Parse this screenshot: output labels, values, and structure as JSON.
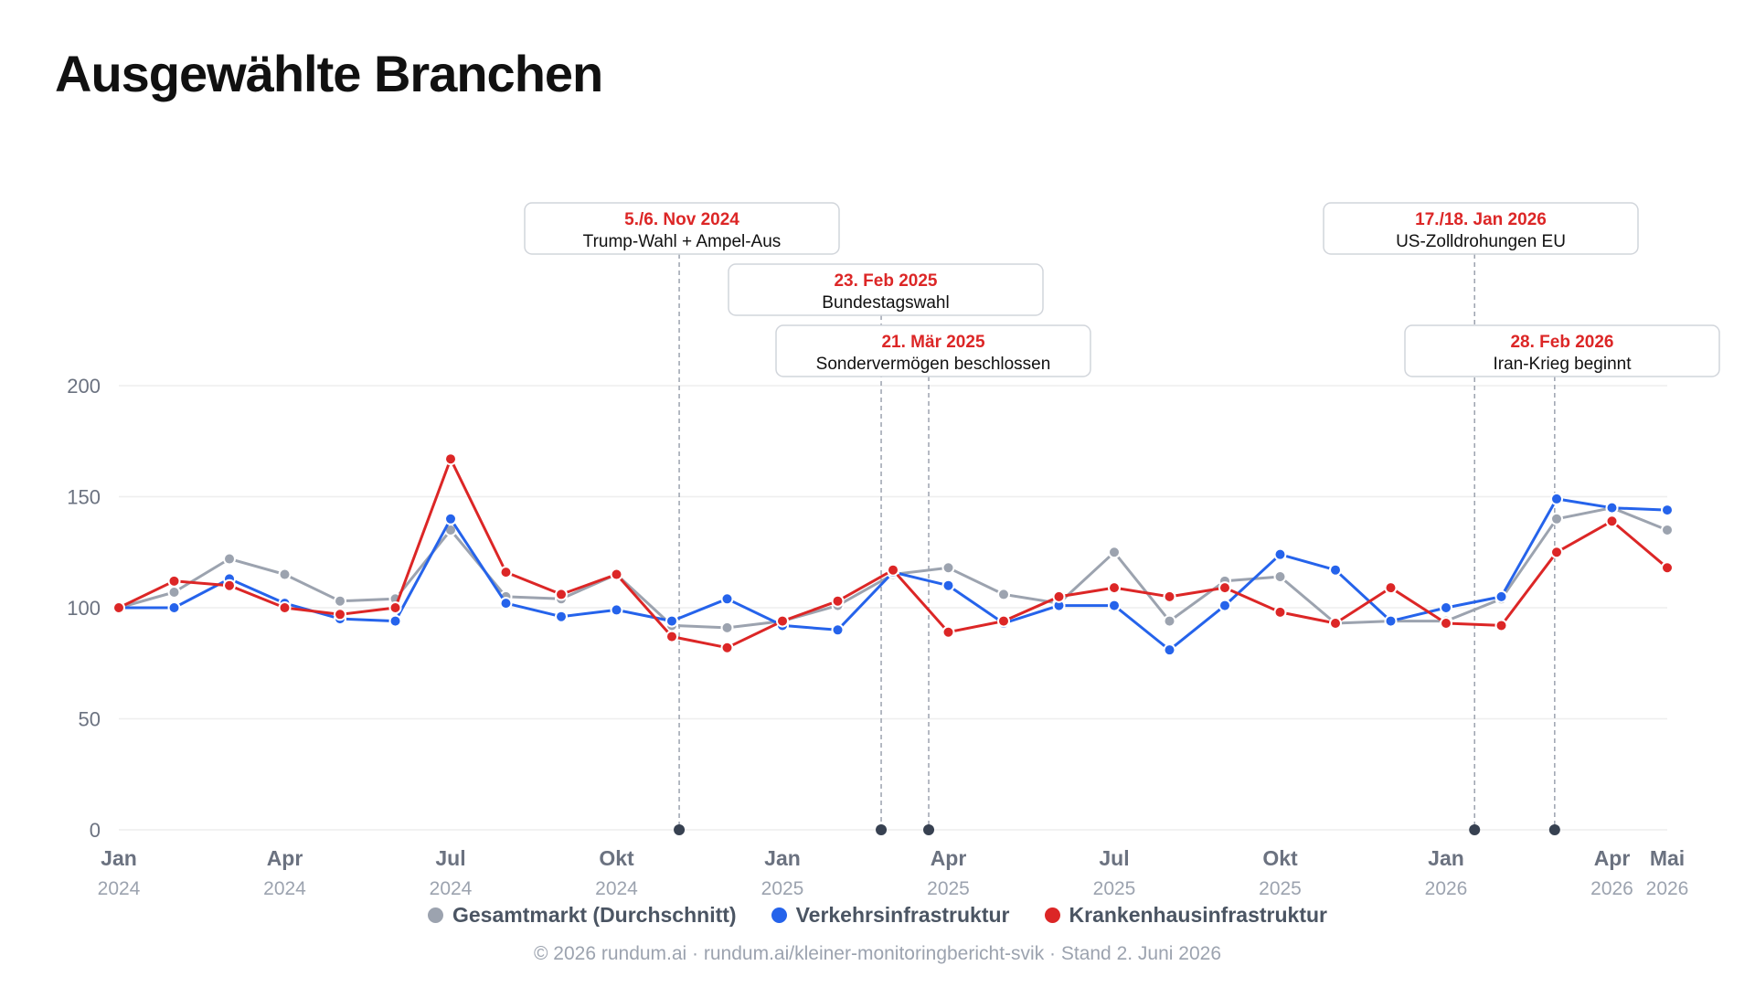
{
  "title": "Ausgewählte Branchen",
  "footer": "© 2026 rundum.ai · rundum.ai/kleiner-monitoringbericht-svik · Stand 2. Juni 2026",
  "colors": {
    "gesamt": "#9ca3af",
    "verkehr": "#2563eb",
    "kranken": "#dc2626",
    "grid": "#eeeeee",
    "axis_text": "#6b7280"
  },
  "chart_data": {
    "type": "line",
    "title": "Ausgewählte Branchen",
    "x": [
      "2024-01",
      "2024-02",
      "2024-03",
      "2024-04",
      "2024-05",
      "2024-06",
      "2024-07",
      "2024-08",
      "2024-09",
      "2024-10",
      "2024-11",
      "2024-12",
      "2025-01",
      "2025-02",
      "2025-03",
      "2025-04",
      "2025-05",
      "2025-06",
      "2025-07",
      "2025-08",
      "2025-09",
      "2025-10",
      "2025-11",
      "2025-12",
      "2026-01",
      "2026-02",
      "2026-03",
      "2026-04",
      "2026-05"
    ],
    "x_ticks": [
      {
        "month": "Jan",
        "year": "2024",
        "x": "2024-01"
      },
      {
        "month": "Apr",
        "year": "2024",
        "x": "2024-04"
      },
      {
        "month": "Jul",
        "year": "2024",
        "x": "2024-07"
      },
      {
        "month": "Okt",
        "year": "2024",
        "x": "2024-10"
      },
      {
        "month": "Jan",
        "year": "2025",
        "x": "2025-01"
      },
      {
        "month": "Apr",
        "year": "2025",
        "x": "2025-04"
      },
      {
        "month": "Jul",
        "year": "2025",
        "x": "2025-07"
      },
      {
        "month": "Okt",
        "year": "2025",
        "x": "2025-10"
      },
      {
        "month": "Jan",
        "year": "2026",
        "x": "2026-01"
      },
      {
        "month": "Apr",
        "year": "2026",
        "x": "2026-04"
      },
      {
        "month": "Mai",
        "year": "2026",
        "x": "2026-05"
      }
    ],
    "y_ticks": [
      0,
      50,
      100,
      150,
      200
    ],
    "ylim": [
      0,
      200
    ],
    "grid": true,
    "legend_position": "bottom-center",
    "series": [
      {
        "name": "Gesamtmarkt (Durchschnitt)",
        "color_key": "gesamt",
        "values": [
          100,
          107,
          122,
          115,
          103,
          104,
          135,
          105,
          104,
          115,
          92,
          91,
          94,
          101,
          115,
          118,
          106,
          102,
          125,
          94,
          112,
          114,
          93,
          94,
          94,
          104,
          140,
          145,
          135
        ]
      },
      {
        "name": "Verkehrsinfrastruktur",
        "color_key": "verkehr",
        "values": [
          100,
          100,
          113,
          102,
          95,
          94,
          140,
          102,
          96,
          99,
          94,
          104,
          92,
          90,
          116,
          110,
          93,
          101,
          101,
          81,
          101,
          124,
          117,
          94,
          100,
          105,
          149,
          145,
          144
        ]
      },
      {
        "name": "Krankenhausinfrastruktur",
        "color_key": "kranken",
        "values": [
          100,
          112,
          110,
          100,
          97,
          100,
          167,
          116,
          106,
          115,
          87,
          82,
          94,
          103,
          117,
          89,
          94,
          105,
          109,
          105,
          109,
          98,
          93,
          109,
          93,
          92,
          125,
          139,
          118
        ]
      }
    ],
    "annotations": [
      {
        "date": "5./6. Nov 2024",
        "label": "Trump-Wahl + Ampel-Aus",
        "x": "2024-11-05"
      },
      {
        "date": "23. Feb 2025",
        "label": "Bundestagswahl",
        "x": "2025-02-23"
      },
      {
        "date": "21. Mär 2025",
        "label": "Sondervermögen beschlossen",
        "x": "2025-03-21"
      },
      {
        "date": "17./18. Jan 2026",
        "label": "US-Zolldrohungen EU",
        "x": "2026-01-17"
      },
      {
        "date": "28. Feb 2026",
        "label": "Iran-Krieg beginnt",
        "x": "2026-02-28"
      }
    ]
  }
}
